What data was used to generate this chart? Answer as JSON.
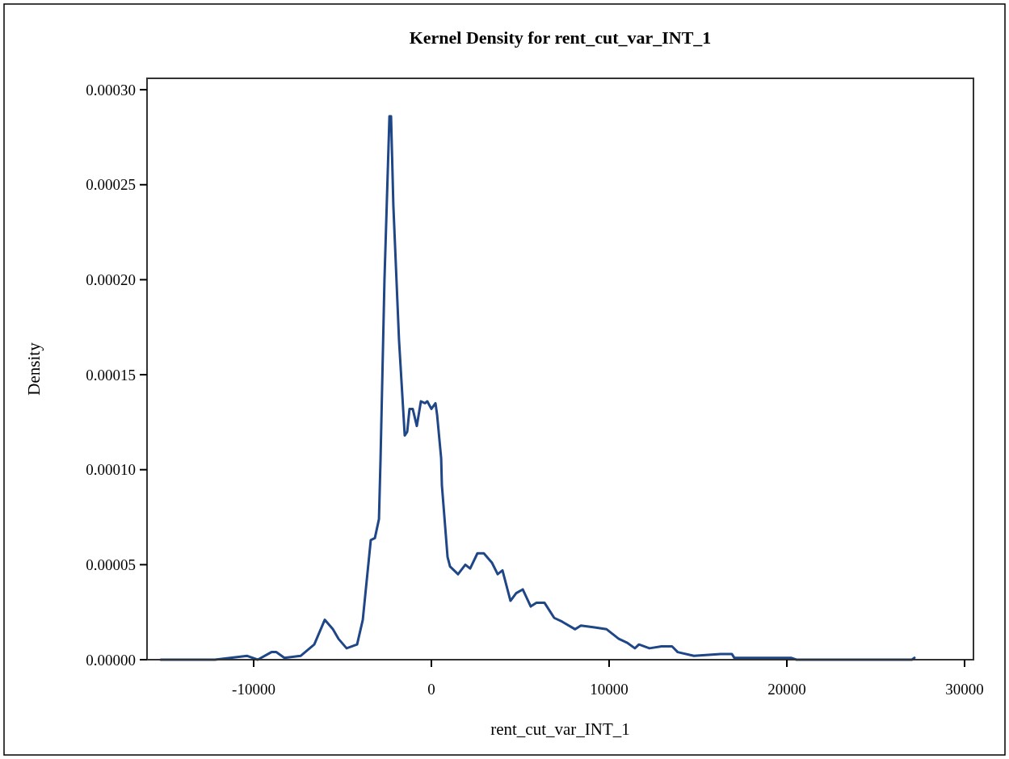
{
  "chart_data": {
    "type": "line",
    "title": "Kernel Density for rent_cut_var_INT_1",
    "xlabel": "rent_cut_var_INT_1",
    "ylabel": "Density",
    "xlim": [
      -16000,
      30500
    ],
    "xticks": [
      -10000,
      0,
      10000,
      20000,
      30000
    ],
    "ylim": [
      0,
      0.000306
    ],
    "yticks": [
      {
        "value": 0,
        "label": "0.00000"
      },
      {
        "value": 5e-05,
        "label": "0.00005"
      },
      {
        "value": 0.0001,
        "label": "0.00010"
      },
      {
        "value": 0.00015,
        "label": "0.00015"
      },
      {
        "value": 0.0002,
        "label": "0.00020"
      },
      {
        "value": 0.00025,
        "label": "0.00025"
      },
      {
        "value": 0.0003,
        "label": "0.00030"
      }
    ],
    "grid": false,
    "marker": "none",
    "line_style": "solid",
    "series": [
      {
        "color": "#1f4687",
        "x": [
          -15230,
          -12180,
          -10360,
          -9770,
          -9000,
          -8730,
          -8270,
          -7360,
          -6590,
          -6000,
          -5540,
          -5230,
          -4770,
          -4180,
          -3860,
          -3410,
          -3180,
          -2950,
          -2860,
          -2640,
          -2360,
          -2270,
          -2140,
          -1820,
          -1500,
          -1360,
          -1230,
          -1050,
          -820,
          -590,
          -360,
          -230,
          0,
          230,
          320,
          550,
          590,
          910,
          1050,
          1500,
          1910,
          2180,
          2590,
          2950,
          3410,
          3730,
          4000,
          4450,
          4770,
          5140,
          5590,
          5910,
          6360,
          6910,
          7360,
          8090,
          8410,
          9180,
          9860,
          10540,
          11000,
          11450,
          11680,
          12270,
          12950,
          13540,
          13860,
          14770,
          16270,
          16910,
          17040,
          17950,
          20230,
          20540,
          27040,
          27180
        ],
        "values": [
          0,
          0,
          2e-06,
          0,
          4e-06,
          4e-06,
          1e-06,
          2e-06,
          8e-06,
          2.1e-05,
          1.6e-05,
          1.1e-05,
          6e-06,
          8e-06,
          2.1e-05,
          6.3e-05,
          6.4e-05,
          7.4e-05,
          0.000106,
          0.0002,
          0.000286,
          0.000286,
          0.000239,
          0.000168,
          0.000118,
          0.00012,
          0.000132,
          0.000132,
          0.000123,
          0.000136,
          0.000135,
          0.000136,
          0.000132,
          0.000135,
          0.000129,
          0.000106,
          9.2e-05,
          5.4e-05,
          4.9e-05,
          4.5e-05,
          5e-05,
          4.8e-05,
          5.6e-05,
          5.6e-05,
          5.1e-05,
          4.5e-05,
          4.7e-05,
          3.1e-05,
          3.5e-05,
          3.7e-05,
          2.8e-05,
          3e-05,
          3e-05,
          2.2e-05,
          2e-05,
          1.6e-05,
          1.8e-05,
          1.7e-05,
          1.6e-05,
          1.1e-05,
          9e-06,
          6e-06,
          8e-06,
          6e-06,
          7e-06,
          7e-06,
          4e-06,
          2e-06,
          3e-06,
          3e-06,
          1e-06,
          1e-06,
          1e-06,
          0,
          0,
          1e-06
        ]
      }
    ]
  }
}
